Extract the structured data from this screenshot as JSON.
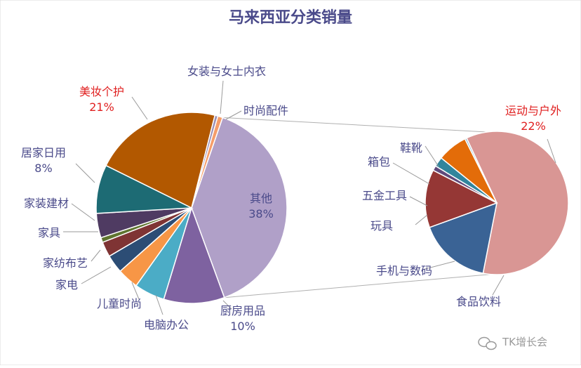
{
  "chart_data": {
    "type": "pie",
    "title": "马来西亚分类销量",
    "main_pie": {
      "slices": [
        {
          "name": "其他",
          "value": 38,
          "color": "#b0a0c8",
          "percent_label": "38%"
        },
        {
          "name": "厨房用品",
          "value": 10,
          "color": "#7e62a0",
          "percent_label": "10%"
        },
        {
          "name": "电脑办公",
          "value": 5,
          "color": "#4bacc6"
        },
        {
          "name": "儿童时尚",
          "value": 3.5,
          "color": "#f79646"
        },
        {
          "name": "家电",
          "value": 3,
          "color": "#2c4d75"
        },
        {
          "name": "家纺布艺",
          "value": 2.5,
          "color": "#7f3434"
        },
        {
          "name": "家具",
          "value": 0.8,
          "color": "#5f7530"
        },
        {
          "name": "家装建材",
          "value": 4,
          "color": "#4f3b62"
        },
        {
          "name": "居家日用",
          "value": 8,
          "color": "#1d6b74",
          "percent_label": "8%"
        },
        {
          "name": "美妆个护",
          "value": 21,
          "color": "#b25800",
          "percent_label": "21%",
          "highlight": true
        },
        {
          "name": "女装与女士内衣",
          "value": 0.5,
          "color": "#9b8fb5"
        },
        {
          "name": "时尚配件",
          "value": 0.8,
          "color": "#f59d6a"
        }
      ]
    },
    "detail_pie": {
      "slices": [
        {
          "name": "运动与户外",
          "value": 22,
          "color": "#d99694",
          "percent_label": "22%",
          "highlight": true
        },
        {
          "name": "食品饮料",
          "value": 6,
          "color": "#3a6395"
        },
        {
          "name": "手机与数码",
          "value": 4.8,
          "color": "#953735"
        },
        {
          "name": "玩具",
          "value": 0.4,
          "color": "#604a7b"
        },
        {
          "name": "五金工具",
          "value": 0.8,
          "color": "#31859c"
        },
        {
          "name": "箱包",
          "value": 2.5,
          "color": "#e36c09"
        },
        {
          "name": "鞋靴",
          "value": 0.15,
          "color": "#8fb8c8"
        }
      ]
    },
    "colors": {
      "label_text": "#4a4a8a",
      "highlight_text": "#e02020",
      "connector": "#b0b0b0"
    }
  },
  "watermark": {
    "text": "TK增长会",
    "icon": "wechat-icon"
  }
}
